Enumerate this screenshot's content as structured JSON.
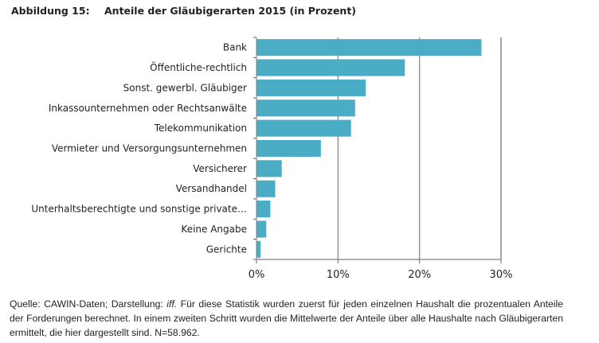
{
  "figure": {
    "number_label": "Abbildung 15:",
    "title": "Anteile der Gläubigerarten 2015 (in Prozent)"
  },
  "chart_data": {
    "type": "bar",
    "orientation": "horizontal",
    "title": "Anteile der Gläubigerarten 2015 (in Prozent)",
    "xlabel": "",
    "ylabel": "",
    "categories": [
      "Bank",
      "Öffentliche-rechtlich",
      "Sonst. gewerbl. Gläubiger",
      "Inkassounternehmen oder Rechtsanwälte",
      "Telekommunikation",
      "Vermieter und Versorgungsunternehmen",
      "Versicherer",
      "Versandhandel",
      "Unterhaltsberechtigte und sonstige private…",
      "Keine Angabe",
      "Gerichte"
    ],
    "values": [
      27.6,
      18.2,
      13.4,
      12.1,
      11.6,
      7.9,
      3.1,
      2.3,
      1.7,
      1.2,
      0.5
    ],
    "xlim": [
      0,
      30
    ],
    "xticks": [
      0,
      10,
      20,
      30
    ],
    "xtick_labels": [
      "0%",
      "10%",
      "20%",
      "30%"
    ],
    "grid": "vertical",
    "legend": "none",
    "bar_color": "#4bacc6"
  },
  "caption": {
    "source_prefix": "Quelle: CAWIN-Daten; Darstellung: ",
    "source_italic": "iff.",
    "text": " Für diese Statistik wurden zuerst für jeden einzelnen Haushalt die prozentualen Anteile der Forderungen berechnet. In einem zweiten Schritt wurden die Mittelwerte der Anteile über alle Haushalte nach Gläubigerarten ermittelt, die hier dargestellt sind. N=58.962."
  }
}
